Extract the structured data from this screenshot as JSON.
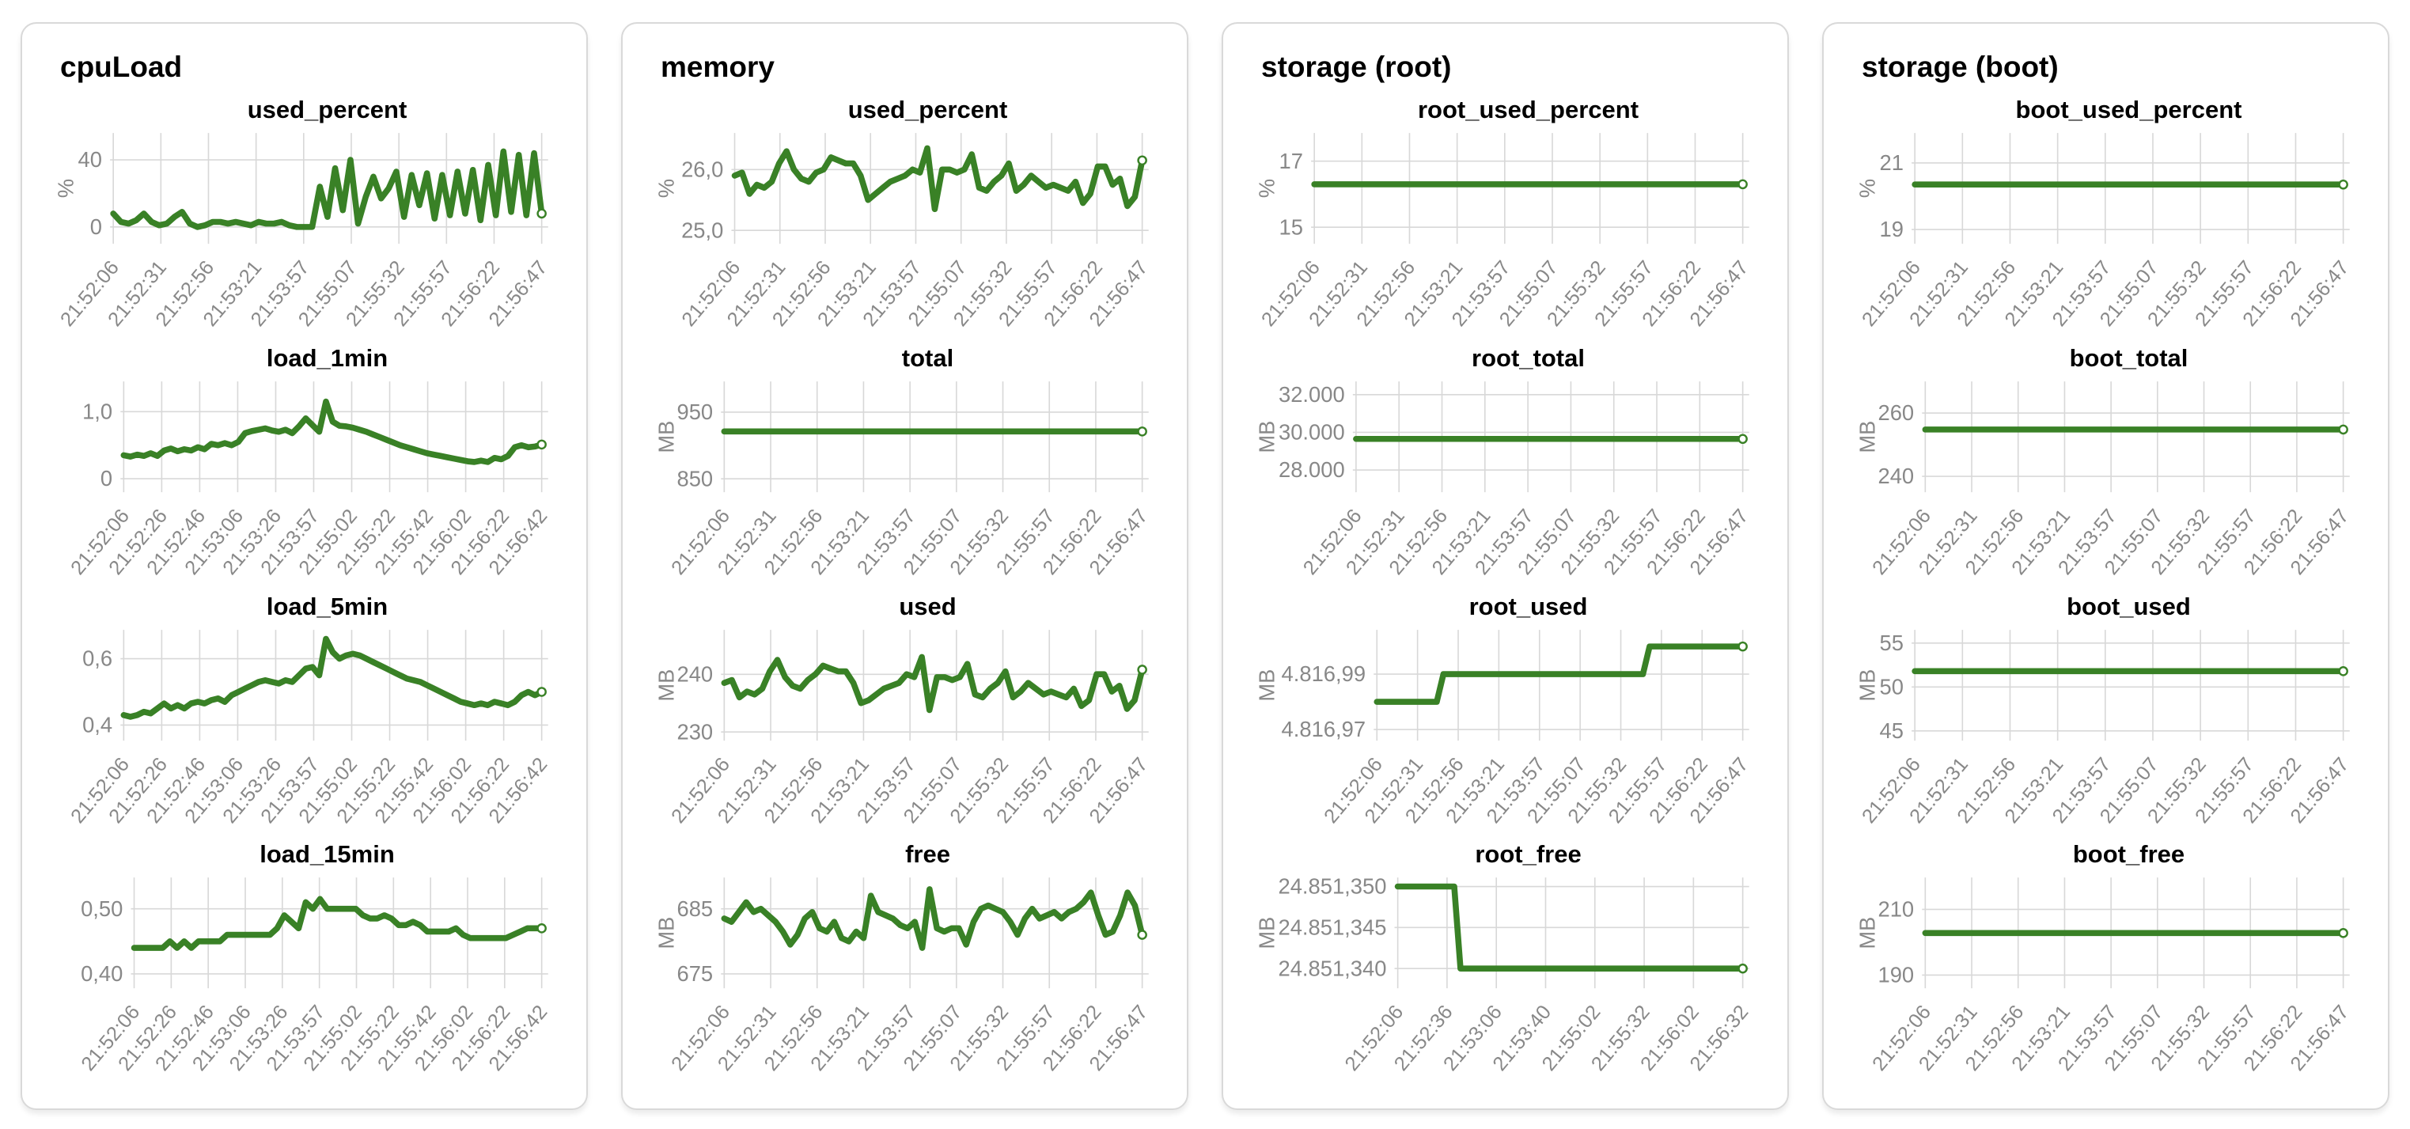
{
  "colors": {
    "line": "#398126",
    "grid": "#d8d8d8",
    "tick_text": "#888888",
    "title_text": "#000000",
    "card_border": "#d9d9d9",
    "card_background": "#ffffff"
  },
  "panels": [
    {
      "title": "cpuLoad",
      "chart_ids": [
        0,
        1,
        2,
        3
      ]
    },
    {
      "title": "memory",
      "chart_ids": [
        4,
        5,
        6,
        7
      ]
    },
    {
      "title": "storage (root)",
      "chart_ids": [
        8,
        9,
        10,
        11
      ]
    },
    {
      "title": "storage (boot)",
      "chart_ids": [
        12,
        13,
        14,
        15
      ]
    }
  ],
  "chart_data": [
    {
      "type": "line",
      "panel": "cpuLoad",
      "title": "used_percent",
      "ylabel": "%",
      "ylim": [
        -10,
        56
      ],
      "y_ticks": [
        {
          "label": "40",
          "value": 40
        },
        {
          "label": "0",
          "value": 0
        }
      ],
      "x_ticks": [
        "21:52:06",
        "21:52:31",
        "21:52:56",
        "21:53:21",
        "21:53:57",
        "21:55:07",
        "21:55:32",
        "21:55:57",
        "21:56:22",
        "21:56:47"
      ],
      "values": [
        8,
        3,
        2,
        4,
        8,
        3,
        1,
        2,
        6,
        9,
        2,
        0,
        1,
        3,
        3,
        2,
        3,
        2,
        1,
        3,
        2,
        2,
        3,
        1,
        0,
        0,
        0,
        24,
        6,
        35,
        10,
        40,
        2,
        18,
        30,
        17,
        23,
        33,
        6,
        31,
        13,
        32,
        5,
        31,
        7,
        33,
        8,
        34,
        4,
        37,
        7,
        45,
        9,
        43,
        7,
        44,
        8
      ]
    },
    {
      "type": "line",
      "panel": "cpuLoad",
      "title": "load_1min",
      "ylabel": "",
      "ylim": [
        -0.2,
        1.45
      ],
      "y_ticks": [
        {
          "label": "1,0",
          "value": 1.0
        },
        {
          "label": "0",
          "value": 0
        }
      ],
      "x_ticks": [
        "21:52:06",
        "21:52:26",
        "21:52:46",
        "21:53:06",
        "21:53:26",
        "21:53:57",
        "21:55:02",
        "21:55:22",
        "21:55:42",
        "21:56:02",
        "21:56:22",
        "21:56:42"
      ],
      "values": [
        0.35,
        0.33,
        0.36,
        0.34,
        0.38,
        0.34,
        0.42,
        0.45,
        0.41,
        0.44,
        0.42,
        0.47,
        0.44,
        0.52,
        0.5,
        0.53,
        0.5,
        0.55,
        0.68,
        0.71,
        0.73,
        0.75,
        0.72,
        0.7,
        0.73,
        0.68,
        0.78,
        0.9,
        0.8,
        0.7,
        1.15,
        0.85,
        0.79,
        0.78,
        0.76,
        0.73,
        0.7,
        0.66,
        0.62,
        0.58,
        0.54,
        0.5,
        0.47,
        0.44,
        0.41,
        0.38,
        0.36,
        0.34,
        0.32,
        0.3,
        0.28,
        0.26,
        0.25,
        0.27,
        0.25,
        0.31,
        0.29,
        0.34,
        0.47,
        0.5,
        0.47,
        0.48,
        0.51
      ]
    },
    {
      "type": "line",
      "panel": "cpuLoad",
      "title": "load_5min",
      "ylabel": "",
      "ylim": [
        0.353,
        0.687
      ],
      "y_ticks": [
        {
          "label": "0,6",
          "value": 0.6
        },
        {
          "label": "0,4",
          "value": 0.4
        }
      ],
      "x_ticks": [
        "21:52:06",
        "21:52:26",
        "21:52:46",
        "21:53:06",
        "21:53:26",
        "21:53:57",
        "21:55:02",
        "21:55:22",
        "21:55:42",
        "21:56:02",
        "21:56:22",
        "21:56:42"
      ],
      "values": [
        0.43,
        0.425,
        0.43,
        0.44,
        0.435,
        0.45,
        0.465,
        0.45,
        0.46,
        0.45,
        0.465,
        0.47,
        0.465,
        0.475,
        0.48,
        0.47,
        0.49,
        0.5,
        0.51,
        0.52,
        0.53,
        0.535,
        0.53,
        0.525,
        0.535,
        0.53,
        0.55,
        0.57,
        0.575,
        0.55,
        0.66,
        0.62,
        0.6,
        0.61,
        0.615,
        0.61,
        0.6,
        0.59,
        0.58,
        0.57,
        0.56,
        0.55,
        0.54,
        0.535,
        0.53,
        0.52,
        0.51,
        0.5,
        0.49,
        0.48,
        0.47,
        0.465,
        0.46,
        0.465,
        0.46,
        0.47,
        0.465,
        0.46,
        0.47,
        0.49,
        0.5,
        0.49,
        0.5
      ]
    },
    {
      "type": "line",
      "panel": "cpuLoad",
      "title": "load_15min",
      "ylabel": "",
      "ylim": [
        0.378,
        0.548
      ],
      "y_ticks": [
        {
          "label": "0,50",
          "value": 0.5
        },
        {
          "label": "0,40",
          "value": 0.4
        }
      ],
      "x_ticks": [
        "21:52:06",
        "21:52:26",
        "21:52:46",
        "21:53:06",
        "21:53:26",
        "21:53:57",
        "21:55:02",
        "21:55:22",
        "21:55:42",
        "21:56:02",
        "21:56:22",
        "21:56:42"
      ],
      "values": [
        0.44,
        0.44,
        0.44,
        0.44,
        0.44,
        0.45,
        0.44,
        0.45,
        0.44,
        0.45,
        0.45,
        0.45,
        0.45,
        0.46,
        0.46,
        0.46,
        0.46,
        0.46,
        0.46,
        0.46,
        0.47,
        0.49,
        0.48,
        0.47,
        0.51,
        0.5,
        0.515,
        0.5,
        0.5,
        0.5,
        0.5,
        0.5,
        0.49,
        0.485,
        0.485,
        0.49,
        0.485,
        0.475,
        0.475,
        0.48,
        0.475,
        0.465,
        0.465,
        0.465,
        0.465,
        0.47,
        0.46,
        0.455,
        0.455,
        0.455,
        0.455,
        0.455,
        0.455,
        0.46,
        0.465,
        0.47,
        0.47,
        0.47
      ]
    },
    {
      "type": "line",
      "panel": "memory",
      "title": "used_percent",
      "ylabel": "%",
      "ylim": [
        24.78,
        26.6
      ],
      "y_ticks": [
        {
          "label": "26,0",
          "value": 26.0
        },
        {
          "label": "25,0",
          "value": 25.0
        }
      ],
      "x_ticks": [
        "21:52:06",
        "21:52:31",
        "21:52:56",
        "21:53:21",
        "21:53:57",
        "21:55:07",
        "21:55:32",
        "21:55:57",
        "21:56:22",
        "21:56:47"
      ],
      "values": [
        25.9,
        25.95,
        25.6,
        25.75,
        25.7,
        25.8,
        26.1,
        26.3,
        26.0,
        25.85,
        25.8,
        25.95,
        26.0,
        26.2,
        26.15,
        26.1,
        26.1,
        25.9,
        25.5,
        25.6,
        25.7,
        25.8,
        25.85,
        25.9,
        26.0,
        25.95,
        26.35,
        25.35,
        26.0,
        26.0,
        25.95,
        26.0,
        26.25,
        25.7,
        25.65,
        25.8,
        25.9,
        26.1,
        25.65,
        25.75,
        25.9,
        25.8,
        25.7,
        25.75,
        25.7,
        25.65,
        25.8,
        25.45,
        25.6,
        26.05,
        26.05,
        25.75,
        25.85,
        25.4,
        25.55,
        26.15
      ]
    },
    {
      "type": "line",
      "panel": "memory",
      "title": "total",
      "ylabel": "MB",
      "ylim": [
        830,
        996
      ],
      "y_ticks": [
        {
          "label": "950",
          "value": 950
        },
        {
          "label": "850",
          "value": 850
        }
      ],
      "x_ticks": [
        "21:52:06",
        "21:52:31",
        "21:52:56",
        "21:53:21",
        "21:53:57",
        "21:55:07",
        "21:55:32",
        "21:55:57",
        "21:56:22",
        "21:56:47"
      ],
      "values": [
        921,
        921
      ]
    },
    {
      "type": "line",
      "panel": "memory",
      "title": "used",
      "ylabel": "MB",
      "ylim": [
        228.5,
        247.7
      ],
      "y_ticks": [
        {
          "label": "240",
          "value": 240
        },
        {
          "label": "230",
          "value": 230
        }
      ],
      "x_ticks": [
        "21:52:06",
        "21:52:31",
        "21:52:56",
        "21:53:21",
        "21:53:57",
        "21:55:07",
        "21:55:32",
        "21:55:57",
        "21:56:22",
        "21:56:47"
      ],
      "values": [
        238.5,
        239,
        236,
        237,
        236.5,
        237.5,
        240.5,
        242.5,
        239.5,
        238,
        237.5,
        239,
        240,
        241.5,
        241,
        240.5,
        240.5,
        238.5,
        235,
        235.5,
        236.5,
        237.5,
        238,
        238.5,
        240,
        239.5,
        243,
        233.8,
        239.5,
        239.5,
        239,
        239.5,
        241.8,
        236.5,
        236,
        237.5,
        238.5,
        240.5,
        236,
        237,
        238.5,
        237.5,
        236.5,
        237,
        236.5,
        236,
        237.5,
        234.5,
        235.5,
        240,
        240,
        237,
        238,
        234,
        235.5,
        240.8
      ]
    },
    {
      "type": "line",
      "panel": "memory",
      "title": "free",
      "ylabel": "MB",
      "ylim": [
        672.8,
        689.8
      ],
      "y_ticks": [
        {
          "label": "685",
          "value": 685
        },
        {
          "label": "675",
          "value": 675
        }
      ],
      "x_ticks": [
        "21:52:06",
        "21:52:31",
        "21:52:56",
        "21:53:21",
        "21:53:57",
        "21:55:07",
        "21:55:32",
        "21:55:57",
        "21:56:22",
        "21:56:47"
      ],
      "values": [
        683.5,
        683,
        684.5,
        686,
        684.5,
        685,
        684,
        683,
        681.5,
        679.5,
        681,
        683.5,
        684.5,
        682,
        681.5,
        683,
        680.5,
        680,
        681.5,
        680.5,
        687,
        684.5,
        684,
        683.5,
        682.5,
        682,
        683,
        679,
        688,
        682,
        681.5,
        682,
        682,
        679.5,
        683,
        685,
        685.5,
        685,
        684.5,
        683,
        681,
        683.5,
        685,
        683.5,
        684,
        684.5,
        683.5,
        684.5,
        685,
        686,
        687.5,
        684,
        681,
        681.5,
        684,
        687.5,
        685.5,
        681
      ]
    },
    {
      "type": "line",
      "panel": "storage (root)",
      "title": "root_used_percent",
      "ylabel": "%",
      "ylim": [
        14.5,
        17.85
      ],
      "y_ticks": [
        {
          "label": "17",
          "value": 17
        },
        {
          "label": "15",
          "value": 15
        }
      ],
      "x_ticks": [
        "21:52:06",
        "21:52:31",
        "21:52:56",
        "21:53:21",
        "21:53:57",
        "21:55:07",
        "21:55:32",
        "21:55:57",
        "21:56:22",
        "21:56:47"
      ],
      "values": [
        16.3,
        16.3
      ]
    },
    {
      "type": "line",
      "panel": "storage (root)",
      "title": "root_total",
      "ylabel": "MB",
      "ylim": [
        26824,
        32700
      ],
      "y_ticks": [
        {
          "label": "32.000",
          "value": 32000
        },
        {
          "label": "30.000",
          "value": 30000
        },
        {
          "label": "28.000",
          "value": 28000
        }
      ],
      "x_ticks": [
        "21:52:06",
        "21:52:31",
        "21:52:56",
        "21:53:21",
        "21:53:57",
        "21:55:07",
        "21:55:32",
        "21:55:57",
        "21:56:22",
        "21:56:47"
      ],
      "values": [
        29650,
        29650
      ]
    },
    {
      "type": "line",
      "panel": "storage (root)",
      "title": "root_used",
      "ylabel": "MB",
      "ylim": [
        4816.966,
        4817.006
      ],
      "y_ticks": [
        {
          "label": "4.816,99",
          "value": 4816.99
        },
        {
          "label": "4.816,97",
          "value": 4816.97
        }
      ],
      "x_ticks": [
        "21:52:06",
        "21:52:31",
        "21:52:56",
        "21:53:21",
        "21:53:57",
        "21:55:07",
        "21:55:32",
        "21:55:57",
        "21:56:22",
        "21:56:47"
      ],
      "values": [
        4816.98,
        4816.98,
        4816.98,
        4816.98,
        4816.98,
        4816.98,
        4816.98,
        4816.98,
        4816.98,
        4816.98,
        4816.99,
        4816.99,
        4816.99,
        4816.99,
        4816.99,
        4816.99,
        4816.99,
        4816.99,
        4816.99,
        4816.99,
        4816.99,
        4816.99,
        4816.99,
        4816.99,
        4816.99,
        4816.99,
        4816.99,
        4816.99,
        4816.99,
        4816.99,
        4816.99,
        4816.99,
        4816.99,
        4816.99,
        4816.99,
        4816.99,
        4816.99,
        4816.99,
        4816.99,
        4816.99,
        4816.99,
        4817.0,
        4817.0,
        4817.0,
        4817.0,
        4817.0,
        4817.0,
        4817.0,
        4817.0,
        4817.0,
        4817.0,
        4817.0,
        4817.0,
        4817.0,
        4817.0,
        4817.0
      ]
    },
    {
      "type": "line",
      "panel": "storage (root)",
      "title": "root_free",
      "ylabel": "MB",
      "ylim": [
        24851.3376,
        24851.3511
      ],
      "y_ticks": [
        {
          "label": "24.851,350",
          "value": 24851.35
        },
        {
          "label": "24.851,345",
          "value": 24851.345
        },
        {
          "label": "24.851,340",
          "value": 24851.34
        }
      ],
      "x_ticks": [
        "21:52:06",
        "21:52:36",
        "21:53:06",
        "21:53:40",
        "21:55:02",
        "21:55:32",
        "21:56:02",
        "21:56:32"
      ],
      "values": [
        24851.35,
        24851.35,
        24851.35,
        24851.35,
        24851.35,
        24851.35,
        24851.35,
        24851.35,
        24851.35,
        24851.35,
        24851.34,
        24851.34,
        24851.34,
        24851.34,
        24851.34,
        24851.34,
        24851.34,
        24851.34,
        24851.34,
        24851.34,
        24851.34,
        24851.34,
        24851.34,
        24851.34,
        24851.34,
        24851.34,
        24851.34,
        24851.34,
        24851.34,
        24851.34,
        24851.34,
        24851.34,
        24851.34,
        24851.34,
        24851.34,
        24851.34,
        24851.34,
        24851.34,
        24851.34,
        24851.34,
        24851.34,
        24851.34,
        24851.34,
        24851.34,
        24851.34,
        24851.34,
        24851.34,
        24851.34,
        24851.34,
        24851.34,
        24851.34,
        24851.34,
        24851.34,
        24851.34,
        24851.34,
        24851.34
      ]
    },
    {
      "type": "line",
      "panel": "storage (boot)",
      "title": "boot_used_percent",
      "ylabel": "%",
      "ylim": [
        18.57,
        21.9
      ],
      "y_ticks": [
        {
          "label": "21",
          "value": 21
        },
        {
          "label": "19",
          "value": 19
        }
      ],
      "x_ticks": [
        "21:52:06",
        "21:52:31",
        "21:52:56",
        "21:53:21",
        "21:53:57",
        "21:55:07",
        "21:55:32",
        "21:55:57",
        "21:56:22",
        "21:56:47"
      ],
      "values": [
        20.35,
        20.35
      ]
    },
    {
      "type": "line",
      "panel": "storage (boot)",
      "title": "boot_total",
      "ylabel": "MB",
      "ylim": [
        235,
        270
      ],
      "y_ticks": [
        {
          "label": "260",
          "value": 260
        },
        {
          "label": "240",
          "value": 240
        }
      ],
      "x_ticks": [
        "21:52:06",
        "21:52:31",
        "21:52:56",
        "21:53:21",
        "21:53:57",
        "21:55:07",
        "21:55:32",
        "21:55:57",
        "21:56:22",
        "21:56:47"
      ],
      "values": [
        254.8,
        254.8
      ]
    },
    {
      "type": "line",
      "panel": "storage (boot)",
      "title": "boot_used",
      "ylabel": "MB",
      "ylim": [
        43.9,
        56.5
      ],
      "y_ticks": [
        {
          "label": "55",
          "value": 55
        },
        {
          "label": "50",
          "value": 50
        },
        {
          "label": "45",
          "value": 45
        }
      ],
      "x_ticks": [
        "21:52:06",
        "21:52:31",
        "21:52:56",
        "21:53:21",
        "21:53:57",
        "21:55:07",
        "21:55:32",
        "21:55:57",
        "21:56:22",
        "21:56:47"
      ],
      "values": [
        51.8,
        51.8
      ]
    },
    {
      "type": "line",
      "panel": "storage (boot)",
      "title": "boot_free",
      "ylabel": "MB",
      "ylim": [
        186,
        219.7
      ],
      "y_ticks": [
        {
          "label": "210",
          "value": 210
        },
        {
          "label": "190",
          "value": 190
        }
      ],
      "x_ticks": [
        "21:52:06",
        "21:52:31",
        "21:52:56",
        "21:53:21",
        "21:53:57",
        "21:55:07",
        "21:55:32",
        "21:55:57",
        "21:56:22",
        "21:56:47"
      ],
      "values": [
        202.8,
        202.8
      ]
    }
  ]
}
